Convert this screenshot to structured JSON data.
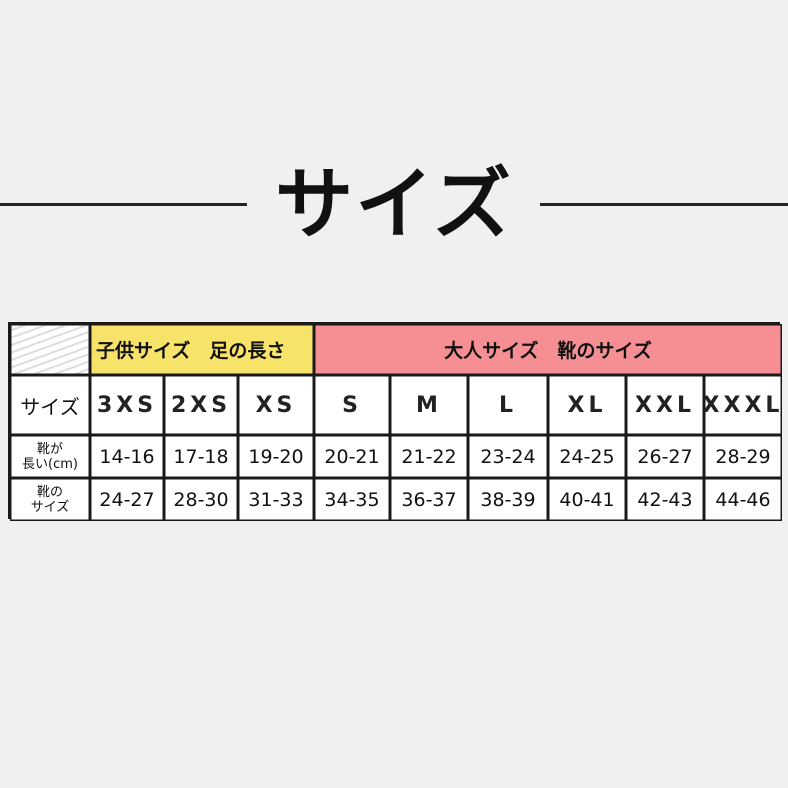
{
  "title": "サイズ",
  "table": {
    "kids_header": "子供サイズ　足の長さ",
    "adult_header": "大人サイズ　靴のサイズ",
    "row_labels": {
      "size": "サイズ",
      "length_line1": "靴が",
      "length_line2": "長い(cm)",
      "shoe_line1": "靴の",
      "shoe_line2": "サイズ"
    },
    "sizes": [
      "3XS",
      "2XS",
      "XS",
      "S",
      "M",
      "L",
      "XL",
      "XXL",
      "XXXL"
    ],
    "lengths": [
      "14-16",
      "17-18",
      "19-20",
      "20-21",
      "21-22",
      "23-24",
      "24-25",
      "26-27",
      "28-29"
    ],
    "shoe_sizes": [
      "24-27",
      "28-30",
      "31-33",
      "34-35",
      "36-37",
      "38-39",
      "40-41",
      "42-43",
      "44-46"
    ]
  },
  "colors": {
    "kids_header_bg": "#f8e36a",
    "adult_header_bg": "#f58f93",
    "background": "#f0f0f0"
  }
}
